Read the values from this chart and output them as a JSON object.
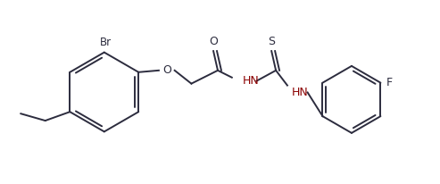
{
  "bg_color": "#ffffff",
  "line_color": "#2c2c3e",
  "nh_color": "#8b0000",
  "line_width": 1.4,
  "figsize": [
    4.93,
    2.06
  ],
  "dpi": 100,
  "br_label": "Br",
  "o_label": "O",
  "o2_label": "O",
  "s_label": "S",
  "nh1_label": "HN",
  "nh2_label": "HN",
  "f_label": "F"
}
